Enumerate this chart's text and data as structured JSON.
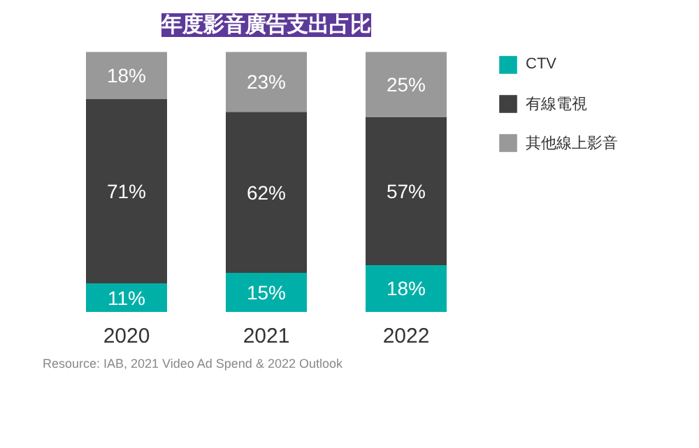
{
  "chart_data": {
    "type": "bar",
    "title": "年度影音廣告支出占比",
    "categories": [
      "2020",
      "2021",
      "2022"
    ],
    "series": [
      {
        "name": "CTV",
        "color": "#00b0a8",
        "values": [
          11,
          15,
          18
        ],
        "value_labels": [
          "11%",
          "15%",
          "18%"
        ]
      },
      {
        "name": "有線電視",
        "color": "#404040",
        "values": [
          71,
          62,
          57
        ],
        "value_labels": [
          "71%",
          "62%",
          "57%"
        ]
      },
      {
        "name": "其他線上影音",
        "color": "#999999",
        "values": [
          18,
          23,
          25
        ],
        "value_labels": [
          "18%",
          "23%",
          "25%"
        ]
      }
    ],
    "stacked": true,
    "legend": "right",
    "annotations": [
      "Resource: IAB, 2021 Video Ad Spend & 2022 Outlook"
    ]
  }
}
